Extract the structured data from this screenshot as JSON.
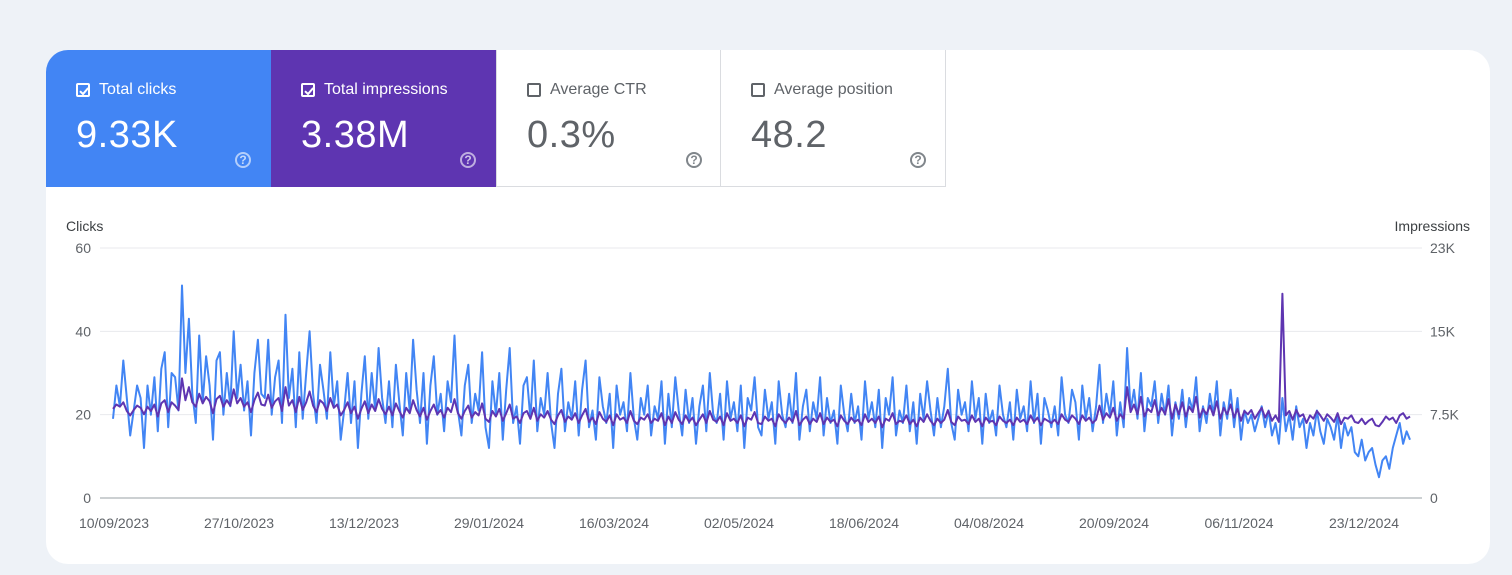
{
  "metrics": {
    "clicks": {
      "label": "Total clicks",
      "value": "9.33K",
      "checked": true,
      "color": "#4285f4"
    },
    "impressions": {
      "label": "Total impressions",
      "value": "3.38M",
      "checked": true,
      "color": "#5e35b1"
    },
    "ctr": {
      "label": "Average CTR",
      "value": "0.3%",
      "checked": false
    },
    "position": {
      "label": "Average position",
      "value": "48.2",
      "checked": false
    },
    "help_icon": "?"
  },
  "chart_data": {
    "type": "line",
    "left_axis_title": "Clicks",
    "right_axis_title": "Impressions",
    "left_ticks": [
      "0",
      "20",
      "40",
      "60"
    ],
    "right_ticks": [
      "0",
      "7.5K",
      "15K",
      "23K"
    ],
    "left_ylim": [
      0,
      60
    ],
    "right_ylim": [
      0,
      23000
    ],
    "x_ticks": [
      "10/09/2023",
      "27/10/2023",
      "13/12/2023",
      "29/01/2024",
      "16/03/2024",
      "02/05/2024",
      "18/06/2024",
      "04/08/2024",
      "20/09/2024",
      "06/11/2024",
      "23/12/2024"
    ],
    "grid": true,
    "series": [
      {
        "name": "Total clicks",
        "axis": "left",
        "color": "#4285f4",
        "values": [
          19,
          27,
          22,
          33,
          24,
          15,
          21,
          27,
          24,
          12,
          27,
          20,
          29,
          16,
          31,
          35,
          17,
          30,
          29,
          21,
          51,
          30,
          43,
          25,
          18,
          39,
          23,
          34,
          27,
          14,
          33,
          35,
          20,
          30,
          22,
          40,
          24,
          32,
          21,
          28,
          15,
          30,
          38,
          25,
          24,
          38,
          20,
          29,
          33,
          18,
          44,
          24,
          31,
          17,
          35,
          19,
          30,
          40,
          25,
          18,
          32,
          26,
          19,
          35,
          22,
          28,
          14,
          21,
          30,
          18,
          28,
          12,
          25,
          34,
          19,
          30,
          21,
          36,
          24,
          18,
          28,
          17,
          32,
          23,
          15,
          30,
          21,
          38,
          26,
          18,
          30,
          13,
          27,
          34,
          20,
          25,
          16,
          28,
          23,
          39,
          21,
          15,
          27,
          32,
          18,
          25,
          21,
          35,
          17,
          12,
          28,
          20,
          30,
          14,
          26,
          36,
          18,
          22,
          13,
          27,
          29,
          19,
          33,
          16,
          24,
          20,
          30,
          18,
          12,
          25,
          31,
          16,
          23,
          19,
          28,
          15,
          26,
          33,
          17,
          21,
          14,
          29,
          22,
          18,
          25,
          12,
          27,
          20,
          23,
          16,
          30,
          19,
          14,
          24,
          20,
          27,
          15,
          22,
          19,
          28,
          13,
          25,
          17,
          29,
          21,
          15,
          26,
          18,
          24,
          13,
          22,
          27,
          16,
          30,
          20,
          18,
          25,
          14,
          28,
          19,
          23,
          16,
          27,
          12,
          24,
          21,
          29,
          17,
          15,
          26,
          19,
          23,
          13,
          28,
          20,
          17,
          25,
          18,
          30,
          14,
          22,
          26,
          16,
          23,
          19,
          29,
          15,
          24,
          18,
          21,
          13,
          27,
          20,
          16,
          25,
          18,
          22,
          14,
          28,
          19,
          23,
          17,
          26,
          12,
          24,
          20,
          29,
          15,
          21,
          18,
          27,
          16,
          23,
          13,
          25,
          19,
          28,
          21,
          15,
          24,
          17,
          22,
          31,
          18,
          14,
          26,
          20,
          23,
          16,
          28,
          19,
          24,
          13,
          25,
          18,
          21,
          15,
          27,
          20,
          17,
          23,
          14,
          26,
          19,
          22,
          16,
          28,
          18,
          25,
          13,
          24,
          21,
          17,
          22,
          15,
          29,
          20,
          18,
          26,
          23,
          14,
          27,
          19,
          24,
          16,
          22,
          32,
          18,
          25,
          20,
          28,
          15,
          23,
          17,
          36,
          21,
          26,
          19,
          30,
          16,
          24,
          22,
          28,
          18,
          25,
          20,
          27,
          15,
          23,
          19,
          26,
          17,
          24,
          21,
          29,
          16,
          22,
          18,
          25,
          20,
          28,
          15,
          23,
          19,
          26,
          17,
          24,
          14,
          21,
          18,
          20,
          16,
          19,
          22,
          17,
          21,
          15,
          18,
          13,
          24,
          16,
          20,
          14,
          22,
          17,
          19,
          12,
          18,
          15,
          21,
          16,
          13,
          19,
          17,
          14,
          20,
          12,
          18,
          15,
          17,
          11,
          10,
          14,
          9,
          11,
          12,
          8,
          5,
          9,
          10,
          7,
          12,
          15,
          18,
          13,
          16,
          14
        ]
      },
      {
        "name": "Total impressions",
        "axis": "right",
        "color": "#5e35b1",
        "values": [
          8200,
          8600,
          8400,
          8800,
          8000,
          7600,
          8100,
          8500,
          8300,
          7700,
          8400,
          8000,
          8600,
          7500,
          8700,
          9000,
          7900,
          8800,
          8500,
          8100,
          11000,
          9000,
          10200,
          8800,
          8400,
          9600,
          8700,
          9300,
          8900,
          7800,
          9100,
          9400,
          8400,
          9000,
          8500,
          10000,
          8700,
          9200,
          8400,
          8800,
          7900,
          9000,
          9700,
          8600,
          8500,
          9500,
          8300,
          8900,
          9200,
          8000,
          10200,
          8500,
          9000,
          7900,
          9300,
          8100,
          8800,
          9800,
          8500,
          7900,
          9000,
          8700,
          8000,
          9200,
          8300,
          8600,
          7600,
          8100,
          8800,
          7800,
          8400,
          7300,
          8200,
          8900,
          7800,
          8600,
          8000,
          9100,
          8200,
          7700,
          8400,
          7600,
          8700,
          8000,
          7400,
          8300,
          7800,
          9000,
          8100,
          7500,
          8300,
          7200,
          8000,
          8600,
          7700,
          8100,
          7400,
          8300,
          7900,
          9100,
          7800,
          7300,
          8000,
          8500,
          7400,
          7900,
          7600,
          8700,
          7300,
          7000,
          8000,
          7500,
          8200,
          7100,
          7800,
          8600,
          7300,
          7500,
          6900,
          7800,
          8000,
          7300,
          8300,
          7100,
          7700,
          7400,
          8000,
          7200,
          6800,
          7600,
          8100,
          7000,
          7500,
          7200,
          7800,
          6900,
          7600,
          8200,
          7000,
          7400,
          6800,
          7900,
          7300,
          7000,
          7600,
          6700,
          7700,
          7200,
          7400,
          6900,
          8000,
          7100,
          6800,
          7400,
          7200,
          7700,
          6900,
          7300,
          7100,
          7800,
          6700,
          7500,
          6900,
          7900,
          7200,
          6800,
          7600,
          7000,
          7400,
          6700,
          7200,
          7700,
          6900,
          8000,
          7200,
          7000,
          7500,
          6700,
          7800,
          7100,
          7300,
          6900,
          7600,
          6600,
          7400,
          7200,
          7900,
          6900,
          6800,
          7500,
          7100,
          7300,
          6600,
          7700,
          7200,
          6900,
          7400,
          7000,
          8000,
          6700,
          7200,
          7500,
          6800,
          7300,
          7000,
          7800,
          6800,
          7400,
          7000,
          7200,
          6600,
          7600,
          7100,
          6800,
          7400,
          7000,
          7200,
          6700,
          7700,
          7000,
          7300,
          6900,
          7500,
          6500,
          7300,
          7100,
          7800,
          6800,
          7100,
          7000,
          7600,
          6800,
          7200,
          6600,
          7400,
          7000,
          7700,
          7100,
          6700,
          7300,
          6900,
          7200,
          8100,
          7000,
          6700,
          7500,
          7100,
          7200,
          6800,
          7600,
          7000,
          7300,
          6600,
          7400,
          7000,
          7100,
          6700,
          7500,
          7100,
          6900,
          7200,
          6700,
          7400,
          7000,
          7200,
          6800,
          7600,
          7000,
          7400,
          6700,
          7300,
          7100,
          6900,
          7200,
          6800,
          7700,
          7200,
          7000,
          7600,
          7300,
          6800,
          7600,
          7100,
          7400,
          6900,
          7200,
          8500,
          7200,
          7800,
          7400,
          8300,
          7100,
          7700,
          7300,
          10200,
          7900,
          8600,
          7700,
          9300,
          7500,
          8200,
          7900,
          9000,
          7600,
          8300,
          7700,
          9100,
          7300,
          8600,
          7700,
          8800,
          7500,
          8400,
          7900,
          9300,
          7400,
          8200,
          7700,
          8500,
          7600,
          8900,
          7300,
          8300,
          7700,
          8600,
          7400,
          8200,
          7100,
          8000,
          7700,
          8100,
          7300,
          7800,
          8300,
          7400,
          8000,
          7100,
          7600,
          7000,
          18800,
          7600,
          8000,
          7200,
          8100,
          7500,
          7700,
          6900,
          7600,
          7300,
          8000,
          7600,
          7100,
          7700,
          7400,
          7000,
          7800,
          6800,
          7400,
          7300,
          7600,
          7000,
          6900,
          7300,
          6800,
          7100,
          7300,
          6700,
          6600,
          7000,
          7500,
          7200,
          7400,
          6900,
          7600,
          7800,
          7300,
          7500
        ]
      }
    ]
  }
}
